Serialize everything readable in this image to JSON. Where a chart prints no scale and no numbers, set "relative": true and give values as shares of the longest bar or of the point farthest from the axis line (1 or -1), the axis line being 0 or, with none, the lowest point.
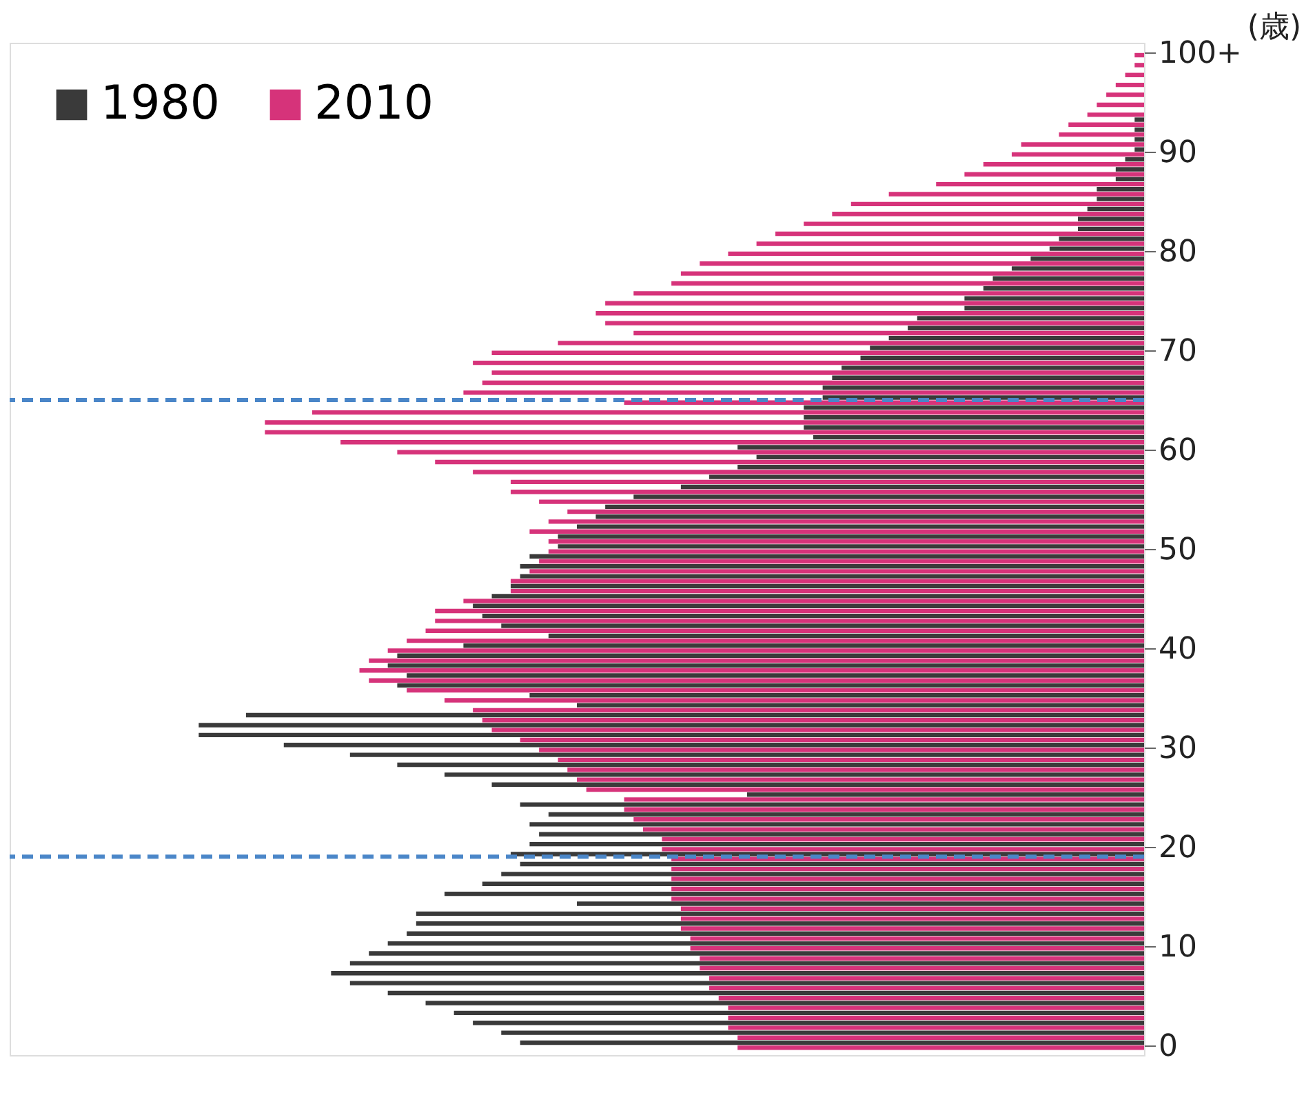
{
  "chart_data": {
    "type": "bar",
    "orientation": "horizontal",
    "relative": true,
    "ylabel": "(歳)",
    "x": [
      0,
      1,
      2,
      3,
      4,
      5,
      6,
      7,
      8,
      9,
      10,
      11,
      12,
      13,
      14,
      15,
      16,
      17,
      18,
      19,
      20,
      21,
      22,
      23,
      24,
      25,
      26,
      27,
      28,
      29,
      30,
      31,
      32,
      33,
      34,
      35,
      36,
      37,
      38,
      39,
      40,
      41,
      42,
      43,
      44,
      45,
      46,
      47,
      48,
      49,
      50,
      51,
      52,
      53,
      54,
      55,
      56,
      57,
      58,
      59,
      60,
      61,
      62,
      63,
      64,
      65,
      66,
      67,
      68,
      69,
      70,
      71,
      72,
      73,
      74,
      75,
      76,
      77,
      78,
      79,
      80,
      81,
      82,
      83,
      84,
      85,
      86,
      87,
      88,
      89,
      90,
      91,
      92,
      93,
      94,
      95,
      96,
      97,
      98,
      99,
      100
    ],
    "ylim": [
      -1,
      101
    ],
    "yticks": [
      0,
      10,
      20,
      30,
      40,
      50,
      60,
      70,
      80,
      90,
      {
        "value": 100,
        "label": "100+"
      }
    ],
    "series": [
      {
        "name": "1980",
        "color": "#3a3a3a",
        "values": [
          0.66,
          0.68,
          0.71,
          0.73,
          0.76,
          0.8,
          0.84,
          0.86,
          0.84,
          0.82,
          0.8,
          0.78,
          0.77,
          0.77,
          0.6,
          0.74,
          0.7,
          0.68,
          0.66,
          0.67,
          0.65,
          0.64,
          0.65,
          0.63,
          0.66,
          0.42,
          0.69,
          0.74,
          0.79,
          0.84,
          0.91,
          1.0,
          1.0,
          0.95,
          0.6,
          0.65,
          0.79,
          0.78,
          0.8,
          0.79,
          0.72,
          0.63,
          0.68,
          0.7,
          0.71,
          0.69,
          0.67,
          0.66,
          0.66,
          0.65,
          0.62,
          0.62,
          0.6,
          0.58,
          0.57,
          0.54,
          0.49,
          0.46,
          0.43,
          0.41,
          0.43,
          0.35,
          0.36,
          0.36,
          0.36,
          0.34,
          0.34,
          0.33,
          0.32,
          0.3,
          0.29,
          0.27,
          0.25,
          0.24,
          0.19,
          0.19,
          0.17,
          0.16,
          0.14,
          0.12,
          0.1,
          0.09,
          0.07,
          0.07,
          0.06,
          0.05,
          0.05,
          0.03,
          0.03,
          0.02,
          0.01,
          0.01,
          0.01,
          0.01,
          0,
          0,
          0,
          0,
          0,
          0,
          0
        ]
      },
      {
        "name": "2010",
        "color": "#d6337a",
        "values": [
          0.43,
          0.43,
          0.44,
          0.44,
          0.44,
          0.45,
          0.46,
          0.46,
          0.47,
          0.47,
          0.48,
          0.48,
          0.49,
          0.49,
          0.49,
          0.5,
          0.5,
          0.5,
          0.5,
          0.5,
          0.51,
          0.51,
          0.53,
          0.54,
          0.55,
          0.55,
          0.59,
          0.6,
          0.61,
          0.62,
          0.64,
          0.66,
          0.69,
          0.7,
          0.71,
          0.74,
          0.78,
          0.82,
          0.83,
          0.82,
          0.8,
          0.78,
          0.76,
          0.75,
          0.75,
          0.72,
          0.67,
          0.67,
          0.65,
          0.64,
          0.63,
          0.63,
          0.65,
          0.63,
          0.61,
          0.64,
          0.67,
          0.67,
          0.71,
          0.75,
          0.79,
          0.85,
          0.93,
          0.93,
          0.88,
          0.55,
          0.72,
          0.7,
          0.69,
          0.71,
          0.69,
          0.62,
          0.54,
          0.57,
          0.58,
          0.57,
          0.54,
          0.5,
          0.49,
          0.47,
          0.44,
          0.41,
          0.39,
          0.36,
          0.33,
          0.31,
          0.27,
          0.22,
          0.19,
          0.17,
          0.14,
          0.13,
          0.09,
          0.08,
          0.06,
          0.05,
          0.04,
          0.03,
          0.02,
          0.01,
          0.01
        ]
      }
    ],
    "ref_lines": [
      {
        "axis": "y",
        "value": 19,
        "color": "#4a86c8",
        "line_style": "dashed"
      },
      {
        "axis": "y",
        "value": 65,
        "color": "#4a86c8",
        "line_style": "dashed"
      }
    ],
    "legend": "top left"
  }
}
